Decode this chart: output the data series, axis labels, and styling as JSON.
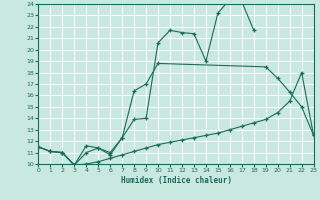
{
  "xlabel": "Humidex (Indice chaleur)",
  "xlim": [
    0,
    23
  ],
  "ylim": [
    10,
    24
  ],
  "xticks": [
    0,
    1,
    2,
    3,
    4,
    5,
    6,
    7,
    8,
    9,
    10,
    11,
    12,
    13,
    14,
    15,
    16,
    17,
    18,
    19,
    20,
    21,
    22,
    23
  ],
  "yticks": [
    10,
    11,
    12,
    13,
    14,
    15,
    16,
    17,
    18,
    19,
    20,
    21,
    22,
    23,
    24
  ],
  "line_color": "#1a6b5a",
  "bg_color": "#c8e8e0",
  "grid_color": "#aed4cc",
  "curve1_x": [
    0,
    1,
    2,
    3,
    4,
    5,
    6,
    7,
    8,
    9,
    10,
    11,
    12,
    13,
    14,
    15,
    16,
    17,
    18
  ],
  "curve1_y": [
    11.5,
    11.1,
    11.0,
    9.9,
    11.6,
    11.4,
    10.8,
    12.3,
    13.9,
    14.0,
    20.6,
    21.7,
    21.5,
    21.4,
    19.0,
    23.2,
    24.4,
    24.2,
    21.7
  ],
  "curve2_x": [
    0,
    1,
    2,
    3,
    4,
    5,
    6,
    7,
    8,
    9,
    10,
    19,
    20,
    21,
    22,
    23
  ],
  "curve2_y": [
    11.5,
    11.1,
    11.0,
    9.9,
    11.0,
    11.4,
    11.0,
    12.3,
    16.4,
    17.0,
    18.8,
    18.5,
    17.5,
    16.3,
    15.0,
    12.5
  ],
  "curve3_x": [
    0,
    1,
    2,
    3,
    4,
    5,
    6,
    7,
    8,
    9,
    10,
    11,
    12,
    13,
    14,
    15,
    16,
    17,
    18,
    19,
    20,
    21,
    22,
    23
  ],
  "curve3_y": [
    11.5,
    11.1,
    11.0,
    9.9,
    10.0,
    10.2,
    10.5,
    10.8,
    11.1,
    11.4,
    11.7,
    11.9,
    12.1,
    12.3,
    12.5,
    12.7,
    13.0,
    13.3,
    13.6,
    13.9,
    14.5,
    15.5,
    18.0,
    12.5
  ]
}
